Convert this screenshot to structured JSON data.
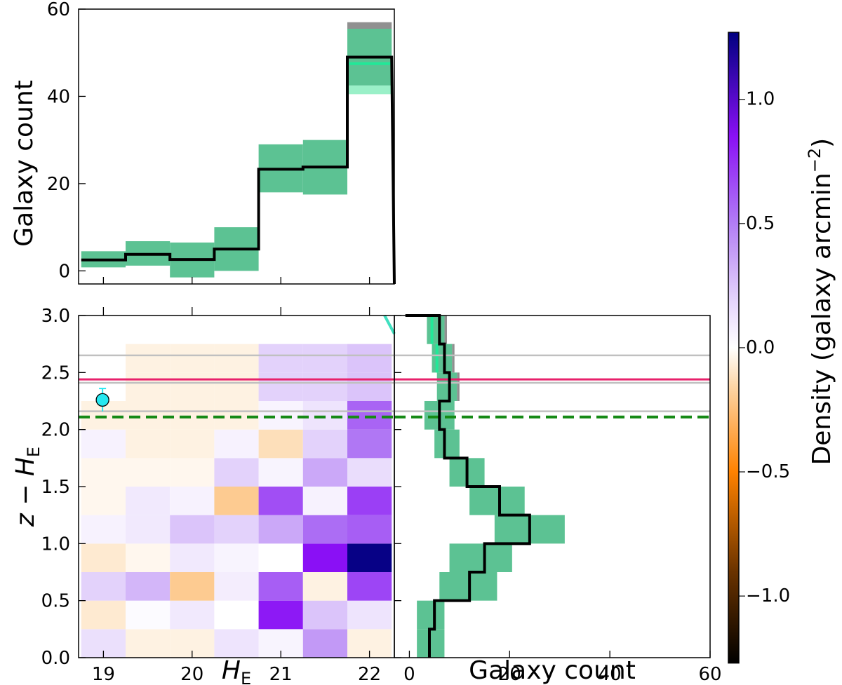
{
  "colors": {
    "histogram_line": "#000000",
    "uncertainty_band": "#5cc293",
    "background_excess": "#909090",
    "mint_band": "#9af0c8",
    "mint_line": "#22e898",
    "cyan_line": "#3fe0c0",
    "source_point": "#26e7f0",
    "magenta_line": "#e8216b",
    "grey_line": "#c0c0c0",
    "dashed_line": "#168a16"
  },
  "chart_data": [
    {
      "type": "histogram",
      "panel": "top",
      "xlabel": "",
      "ylabel": "Galaxy count",
      "xlim": [
        18.72,
        22.28
      ],
      "ylim": [
        -3,
        60
      ],
      "yticks": [
        0,
        20,
        40,
        60
      ],
      "xticks": [
        19,
        20,
        21,
        22
      ],
      "show_xtick_labels": false,
      "bin_edges": [
        18.75,
        19.25,
        19.75,
        20.25,
        20.75,
        21.25,
        21.75,
        22.25
      ],
      "values": [
        2.5,
        3.8,
        2.6,
        5.0,
        23.3,
        23.8,
        49.0
      ],
      "band_low": [
        0.8,
        1.2,
        -1.5,
        0.0,
        18.0,
        17.5,
        42.5
      ],
      "band_high": [
        4.5,
        6.8,
        6.5,
        10.0,
        29.0,
        30.0,
        55.5
      ],
      "grey_top": [
        null,
        null,
        null,
        null,
        null,
        null,
        57.0
      ],
      "mint_band_low": [
        null,
        null,
        null,
        null,
        null,
        null,
        40.5
      ],
      "mint_line_value": [
        null,
        null,
        null,
        null,
        null,
        null,
        47.5
      ]
    },
    {
      "type": "heatmap",
      "panel": "main",
      "xlabel": "H_E",
      "ylabel": "z − H_E",
      "xlim": [
        18.72,
        22.28
      ],
      "ylim": [
        0,
        3
      ],
      "xticks": [
        19,
        20,
        21,
        22
      ],
      "yticks": [
        0.0,
        0.5,
        1.0,
        1.5,
        2.0,
        2.5,
        3.0
      ],
      "x_edges": [
        18.75,
        19.25,
        19.75,
        20.25,
        20.75,
        21.25,
        21.75,
        22.25
      ],
      "y_edges": [
        0.0,
        0.25,
        0.5,
        0.75,
        1.0,
        1.25,
        1.5,
        1.75,
        2.0,
        2.25,
        2.5,
        2.75,
        3.0
      ],
      "values": [
        [
          0.14,
          -0.05,
          -0.05,
          0.12,
          0.05,
          0.4,
          -0.05
        ],
        [
          -0.08,
          0.02,
          0.1,
          0.0,
          0.82,
          0.25,
          0.12
        ],
        [
          0.2,
          0.3,
          -0.2,
          0.08,
          0.6,
          -0.05,
          0.68
        ],
        [
          -0.08,
          -0.03,
          0.1,
          0.05,
          0.0,
          0.85,
          1.25
        ],
        [
          0.06,
          0.1,
          0.25,
          0.2,
          0.35,
          0.55,
          0.6
        ],
        [
          -0.03,
          0.1,
          0.06,
          -0.2,
          0.65,
          0.06,
          0.7
        ],
        [
          -0.03,
          -0.03,
          -0.03,
          0.2,
          0.05,
          0.35,
          0.15
        ],
        [
          0.06,
          -0.05,
          -0.05,
          0.06,
          -0.12,
          0.2,
          0.52
        ],
        [
          -0.05,
          -0.05,
          -0.05,
          -0.05,
          0.05,
          0.12,
          0.58
        ],
        [
          0.0,
          -0.05,
          -0.05,
          -0.05,
          0.2,
          0.2,
          0.25
        ],
        [
          null,
          -0.05,
          -0.05,
          -0.05,
          0.2,
          0.2,
          0.25
        ],
        [
          null,
          null,
          null,
          null,
          null,
          null,
          null
        ]
      ],
      "source_point": {
        "x": 18.99,
        "y": 2.26,
        "yerr": 0.1
      },
      "cyan_segment": [
        [
          22.17,
          3.0
        ],
        [
          22.28,
          2.84
        ]
      ],
      "horizontal_lines": [
        {
          "y": 2.65,
          "style": "grey"
        },
        {
          "y": 2.41,
          "style": "grey"
        },
        {
          "y": 2.16,
          "style": "grey"
        },
        {
          "y": 2.44,
          "style": "magenta"
        },
        {
          "y": 2.11,
          "style": "green-dashed"
        }
      ]
    },
    {
      "type": "histogram",
      "panel": "right",
      "orientation": "horizontal",
      "xlabel": "Galaxy count",
      "ylabel": "",
      "xlim": [
        -3,
        60
      ],
      "ylim": [
        0,
        3
      ],
      "xticks": [
        0,
        20,
        40,
        60
      ],
      "yticks": [
        0.0,
        0.5,
        1.0,
        1.5,
        2.0,
        2.5,
        3.0
      ],
      "show_ytick_labels": false,
      "bin_edges": [
        0.0,
        0.25,
        0.5,
        0.75,
        1.0,
        1.25,
        1.5,
        1.75,
        2.0,
        2.25,
        2.5,
        2.75,
        3.0
      ],
      "values": [
        4.0,
        5.0,
        12.0,
        15.0,
        24.0,
        18.0,
        11.5,
        7.0,
        6.0,
        8.0,
        7.0,
        6.0
      ],
      "band_low": [
        1.5,
        1.5,
        6.0,
        8.0,
        17.0,
        12.0,
        8.0,
        5.0,
        3.0,
        5.5,
        4.5,
        3.5
      ],
      "band_high": [
        7.0,
        7.0,
        17.5,
        20.5,
        31.0,
        23.0,
        15.0,
        10.0,
        9.0,
        9.5,
        8.5,
        7.0
      ],
      "grey_top": [
        null,
        null,
        null,
        null,
        null,
        null,
        null,
        null,
        null,
        10.0,
        9.0,
        7.5
      ],
      "mint_band_low": [
        null,
        null,
        null,
        null,
        null,
        null,
        null,
        null,
        null,
        null,
        4.5,
        3.5
      ],
      "mint_line_value": [
        null,
        null,
        null,
        null,
        null,
        null,
        null,
        null,
        null,
        null,
        5.5,
        4.5
      ]
    },
    {
      "type": "colorbar",
      "label": "Density (galaxy arcmin−2)",
      "label_main": "Density (galaxy arcmin",
      "label_sup": "−2",
      "label_close": ")",
      "range": [
        -1.27,
        1.27
      ],
      "ticks": [
        -1.0,
        -0.5,
        0.0,
        0.5,
        1.0
      ],
      "tick_labels": [
        "−1.0",
        "−0.5",
        "0.0",
        "0.5",
        "1.0"
      ],
      "colormap": "PuOr-dark",
      "stops": [
        {
          "v": -1.27,
          "c": "#000000"
        },
        {
          "v": -0.9,
          "c": "#6b3300"
        },
        {
          "v": -0.5,
          "c": "#ff8200"
        },
        {
          "v": -0.15,
          "c": "#fdd7a9"
        },
        {
          "v": 0.0,
          "c": "#ffffff"
        },
        {
          "v": 0.2,
          "c": "#e3d2fb"
        },
        {
          "v": 0.5,
          "c": "#b27df4"
        },
        {
          "v": 0.85,
          "c": "#8a10f5"
        },
        {
          "v": 1.27,
          "c": "#000080"
        }
      ]
    }
  ]
}
